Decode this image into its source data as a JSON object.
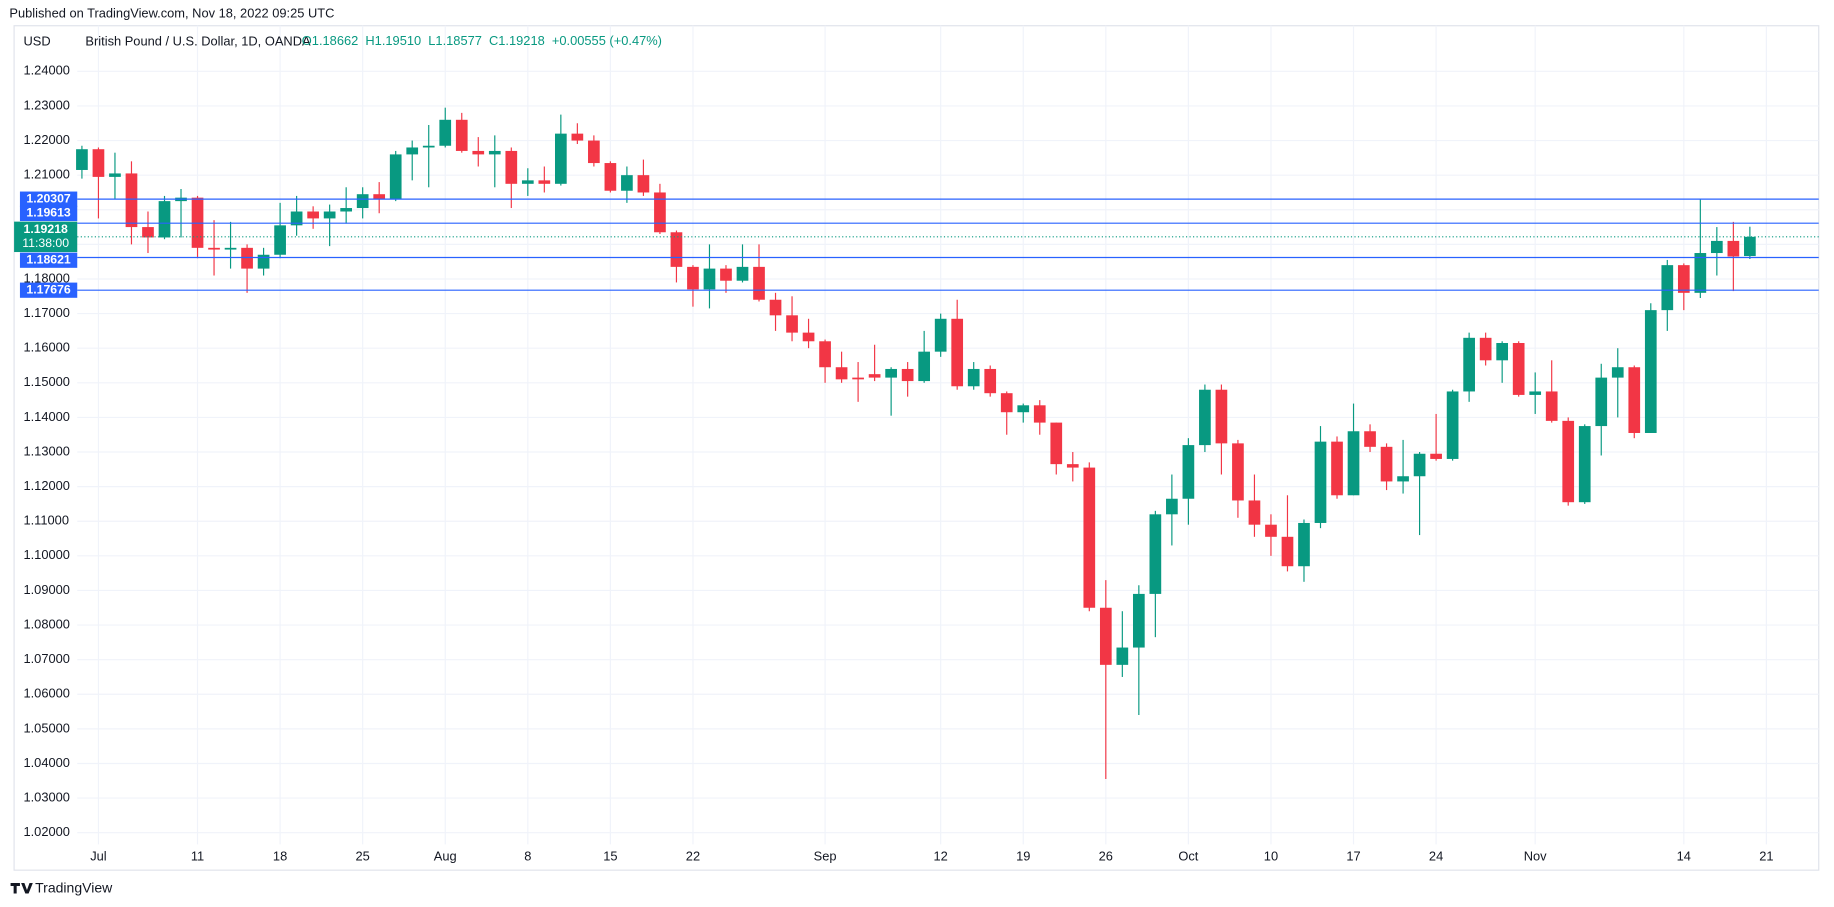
{
  "published": "Published on TradingView.com, Nov 18, 2022 09:25 UTC",
  "brand": "TradingView",
  "chart_data": {
    "type": "candlestick",
    "currency": "USD",
    "title": "British Pound / U.S. Dollar, 1D, OANDA",
    "ohlc_labels": [
      "O1.18662",
      "H1.19510",
      "L1.18577",
      "C1.19218"
    ],
    "change": "+0.00555 (+0.47%)",
    "x": [
      "2022-06-30",
      "2022-07-01",
      "2022-07-04",
      "2022-07-05",
      "2022-07-06",
      "2022-07-07",
      "2022-07-08",
      "2022-07-11",
      "2022-07-12",
      "2022-07-13",
      "2022-07-14",
      "2022-07-15",
      "2022-07-18",
      "2022-07-19",
      "2022-07-20",
      "2022-07-21",
      "2022-07-22",
      "2022-07-25",
      "2022-07-26",
      "2022-07-27",
      "2022-07-28",
      "2022-07-29",
      "2022-08-01",
      "2022-08-02",
      "2022-08-03",
      "2022-08-04",
      "2022-08-05",
      "2022-08-08",
      "2022-08-09",
      "2022-08-10",
      "2022-08-11",
      "2022-08-12",
      "2022-08-15",
      "2022-08-16",
      "2022-08-17",
      "2022-08-18",
      "2022-08-19",
      "2022-08-22",
      "2022-08-23",
      "2022-08-24",
      "2022-08-25",
      "2022-08-26",
      "2022-08-29",
      "2022-08-30",
      "2022-08-31",
      "2022-09-01",
      "2022-09-02",
      "2022-09-05",
      "2022-09-06",
      "2022-09-07",
      "2022-09-08",
      "2022-09-09",
      "2022-09-12",
      "2022-09-13",
      "2022-09-14",
      "2022-09-15",
      "2022-09-16",
      "2022-09-19",
      "2022-09-20",
      "2022-09-21",
      "2022-09-22",
      "2022-09-23",
      "2022-09-26",
      "2022-09-27",
      "2022-09-28",
      "2022-09-29",
      "2022-09-30",
      "2022-10-03",
      "2022-10-04",
      "2022-10-05",
      "2022-10-06",
      "2022-10-07",
      "2022-10-10",
      "2022-10-11",
      "2022-10-12",
      "2022-10-13",
      "2022-10-14",
      "2022-10-17",
      "2022-10-18",
      "2022-10-19",
      "2022-10-20",
      "2022-10-21",
      "2022-10-24",
      "2022-10-25",
      "2022-10-26",
      "2022-10-27",
      "2022-10-28",
      "2022-10-31",
      "2022-11-01",
      "2022-11-02",
      "2022-11-03",
      "2022-11-04",
      "2022-11-07",
      "2022-11-08",
      "2022-11-09",
      "2022-11-10",
      "2022-11-11",
      "2022-11-14",
      "2022-11-15",
      "2022-11-16",
      "2022-11-17",
      "2022-11-18"
    ],
    "open": [
      1.2115,
      1.2175,
      1.2095,
      1.2105,
      1.195,
      1.192,
      1.2025,
      1.2035,
      1.189,
      1.1885,
      1.189,
      1.183,
      1.187,
      1.1955,
      1.1995,
      1.1975,
      1.1995,
      1.2005,
      1.2045,
      1.203,
      1.216,
      1.218,
      1.2185,
      1.226,
      1.217,
      1.216,
      1.217,
      1.2075,
      1.2085,
      1.2075,
      1.222,
      1.22,
      1.2135,
      1.2055,
      1.21,
      1.205,
      1.1935,
      1.1835,
      1.177,
      1.183,
      1.1795,
      1.1835,
      1.174,
      1.1695,
      1.1645,
      1.162,
      1.1545,
      1.1515,
      1.1525,
      1.1515,
      1.154,
      1.1505,
      1.159,
      1.1685,
      1.149,
      1.154,
      1.147,
      1.1415,
      1.1435,
      1.1385,
      1.1265,
      1.1255,
      1.085,
      1.0685,
      1.0735,
      1.089,
      1.112,
      1.1165,
      1.132,
      1.148,
      1.1325,
      1.116,
      1.109,
      1.1055,
      1.097,
      1.1095,
      1.133,
      1.1175,
      1.136,
      1.1315,
      1.1215,
      1.123,
      1.1295,
      1.128,
      1.1475,
      1.163,
      1.1565,
      1.1615,
      1.1465,
      1.1475,
      1.139,
      1.1155,
      1.1375,
      1.1515,
      1.1545,
      1.1355,
      1.171,
      1.184,
      1.176,
      1.1875,
      1.191,
      1.18662
    ],
    "high": [
      1.2185,
      1.218,
      1.2165,
      1.214,
      1.1995,
      1.204,
      1.206,
      1.204,
      1.197,
      1.1965,
      1.19,
      1.189,
      1.202,
      1.204,
      1.201,
      1.2015,
      1.2065,
      1.2065,
      1.208,
      1.217,
      1.22,
      1.2245,
      1.2295,
      1.228,
      1.221,
      1.2215,
      1.218,
      1.212,
      1.2125,
      1.2275,
      1.225,
      1.2215,
      1.214,
      1.2125,
      1.2145,
      1.2075,
      1.194,
      1.184,
      1.19,
      1.184,
      1.19,
      1.19,
      1.176,
      1.175,
      1.1685,
      1.1625,
      1.159,
      1.156,
      1.161,
      1.1545,
      1.156,
      1.165,
      1.17,
      1.174,
      1.156,
      1.155,
      1.1475,
      1.144,
      1.145,
      1.1385,
      1.13,
      1.127,
      1.093,
      1.084,
      1.0915,
      1.113,
      1.1235,
      1.134,
      1.1495,
      1.1495,
      1.1335,
      1.1235,
      1.112,
      1.1175,
      1.1105,
      1.1375,
      1.1345,
      1.144,
      1.138,
      1.1325,
      1.1335,
      1.13,
      1.141,
      1.148,
      1.1645,
      1.1645,
      1.162,
      1.162,
      1.153,
      1.1565,
      1.14,
      1.138,
      1.1555,
      1.16,
      1.155,
      1.173,
      1.1855,
      1.1845,
      1.203,
      1.195,
      1.1965,
      1.1951
    ],
    "low": [
      1.209,
      1.1975,
      1.203,
      1.19,
      1.1875,
      1.1915,
      1.192,
      1.186,
      1.181,
      1.183,
      1.176,
      1.181,
      1.186,
      1.1925,
      1.1945,
      1.1895,
      1.196,
      1.1975,
      1.199,
      1.2025,
      1.2085,
      1.2065,
      1.218,
      1.2165,
      1.2125,
      1.2065,
      1.2005,
      1.204,
      1.205,
      1.207,
      1.219,
      1.2125,
      1.205,
      1.202,
      1.204,
      1.193,
      1.179,
      1.172,
      1.1715,
      1.176,
      1.179,
      1.1735,
      1.165,
      1.162,
      1.16,
      1.15,
      1.15,
      1.1445,
      1.1505,
      1.1405,
      1.146,
      1.15,
      1.1575,
      1.148,
      1.148,
      1.146,
      1.135,
      1.1385,
      1.135,
      1.1235,
      1.1215,
      1.084,
      1.0355,
      1.065,
      1.054,
      1.0765,
      1.103,
      1.109,
      1.13,
      1.1235,
      1.111,
      1.1055,
      1.1,
      1.0955,
      1.0925,
      1.108,
      1.1165,
      1.1175,
      1.13,
      1.119,
      1.118,
      1.106,
      1.1275,
      1.1275,
      1.1445,
      1.155,
      1.15,
      1.146,
      1.141,
      1.1385,
      1.1145,
      1.115,
      1.129,
      1.14,
      1.134,
      1.1355,
      1.165,
      1.171,
      1.1745,
      1.181,
      1.1765,
      1.18577
    ],
    "close": [
      1.2175,
      1.2095,
      1.2105,
      1.195,
      1.192,
      1.2025,
      1.2035,
      1.189,
      1.1885,
      1.189,
      1.183,
      1.187,
      1.1955,
      1.1995,
      1.1975,
      1.1995,
      1.2005,
      1.2045,
      1.203,
      1.216,
      1.218,
      1.2185,
      1.226,
      1.217,
      1.216,
      1.217,
      1.2075,
      1.2085,
      1.2075,
      1.222,
      1.22,
      1.2135,
      1.2055,
      1.21,
      1.205,
      1.1935,
      1.1835,
      1.177,
      1.183,
      1.1795,
      1.1835,
      1.174,
      1.1695,
      1.1645,
      1.162,
      1.1545,
      1.151,
      1.151,
      1.1515,
      1.154,
      1.1505,
      1.159,
      1.1685,
      1.149,
      1.154,
      1.147,
      1.1415,
      1.1435,
      1.1385,
      1.1265,
      1.1255,
      1.085,
      1.0685,
      1.0735,
      1.089,
      1.112,
      1.1165,
      1.132,
      1.148,
      1.1325,
      1.116,
      1.109,
      1.1055,
      1.097,
      1.1095,
      1.133,
      1.1175,
      1.136,
      1.1315,
      1.1215,
      1.123,
      1.1295,
      1.128,
      1.1475,
      1.163,
      1.1565,
      1.1615,
      1.1465,
      1.1475,
      1.139,
      1.1155,
      1.1375,
      1.1515,
      1.1545,
      1.1355,
      1.171,
      1.184,
      1.176,
      1.1875,
      1.191,
      1.1865,
      1.19218
    ],
    "up_color": "#089981",
    "down_color": "#f23645",
    "ylim": [
      1.01661,
      1.25318
    ],
    "yticks": [
      {
        "value": 1.24,
        "label": "1.24000"
      },
      {
        "value": 1.23,
        "label": "1.23000"
      },
      {
        "value": 1.22,
        "label": "1.22000"
      },
      {
        "value": 1.21,
        "label": "1.21000"
      },
      {
        "value": 1.2,
        "label": "1.20000"
      },
      {
        "value": 1.19,
        "label": "1.19000"
      },
      {
        "value": 1.18,
        "label": "1.18000"
      },
      {
        "value": 1.17,
        "label": "1.17000"
      },
      {
        "value": 1.16,
        "label": "1.16000"
      },
      {
        "value": 1.15,
        "label": "1.15000"
      },
      {
        "value": 1.14,
        "label": "1.14000"
      },
      {
        "value": 1.13,
        "label": "1.13000"
      },
      {
        "value": 1.12,
        "label": "1.12000"
      },
      {
        "value": 1.11,
        "label": "1.11000"
      },
      {
        "value": 1.1,
        "label": "1.10000"
      },
      {
        "value": 1.09,
        "label": "1.09000"
      },
      {
        "value": 1.08,
        "label": "1.08000"
      },
      {
        "value": 1.07,
        "label": "1.07000"
      },
      {
        "value": 1.06,
        "label": "1.06000"
      },
      {
        "value": 1.05,
        "label": "1.05000"
      },
      {
        "value": 1.04,
        "label": "1.04000"
      },
      {
        "value": 1.03,
        "label": "1.03000"
      },
      {
        "value": 1.02,
        "label": "1.02000"
      }
    ],
    "xticks": [
      {
        "value": "2022-07-01",
        "label": "Jul"
      },
      {
        "value": "2022-07-11",
        "label": "11"
      },
      {
        "value": "2022-07-18",
        "label": "18"
      },
      {
        "value": "2022-07-25",
        "label": "25"
      },
      {
        "value": "2022-08-01",
        "label": "Aug"
      },
      {
        "value": "2022-08-08",
        "label": "8"
      },
      {
        "value": "2022-08-15",
        "label": "15"
      },
      {
        "value": "2022-08-22",
        "label": "22"
      },
      {
        "value": "2022-09-01",
        "label": "Sep"
      },
      {
        "value": "2022-09-12",
        "label": "12"
      },
      {
        "value": "2022-09-19",
        "label": "19"
      },
      {
        "value": "2022-09-26",
        "label": "26"
      },
      {
        "value": "2022-10-03",
        "label": "Oct"
      },
      {
        "value": "2022-10-10",
        "label": "10"
      },
      {
        "value": "2022-10-17",
        "label": "17"
      },
      {
        "value": "2022-10-24",
        "label": "24"
      },
      {
        "value": "2022-11-01",
        "label": "Nov"
      },
      {
        "value": "2022-11-14",
        "label": "14"
      },
      {
        "value": "2022-11-21",
        "label": "21"
      }
    ],
    "grid": true,
    "levels": [
      1.20307,
      1.19613,
      1.18621,
      1.17676
    ],
    "level_color": "#2962ff",
    "last_price": 1.19218,
    "countdown": "11:38:00"
  }
}
